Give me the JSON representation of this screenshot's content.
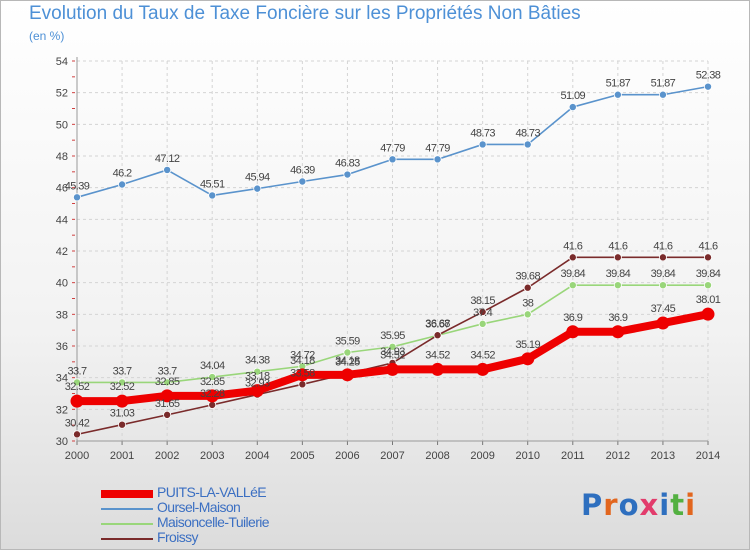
{
  "header": {
    "title": "Evolution du Taux de Taxe Foncière sur les Propriétés Non Bâties",
    "unit_label": "(en %)"
  },
  "logo": {
    "text": "Proxiti",
    "letter_colors": [
      "#2e6fbf",
      "#e2661e",
      "#2e6fbf",
      "#e23c6c",
      "#2e6fbf",
      "#53b041",
      "#e2661e"
    ]
  },
  "chart_data": {
    "type": "line",
    "x": [
      2000,
      2001,
      2002,
      2003,
      2004,
      2005,
      2006,
      2007,
      2008,
      2009,
      2010,
      2011,
      2012,
      2013,
      2014
    ],
    "ylim": [
      30,
      54
    ],
    "yticks": [
      30,
      32,
      34,
      36,
      38,
      40,
      42,
      44,
      46,
      48,
      50,
      52,
      54
    ],
    "grid": true,
    "series": [
      {
        "name": "Oursel-Maison",
        "color": "#5a93cc",
        "values": [
          45.39,
          46.2,
          47.12,
          45.51,
          45.94,
          46.39,
          46.83,
          47.79,
          47.79,
          48.73,
          48.73,
          51.09,
          51.87,
          51.87,
          52.38
        ],
        "labels": [
          "45.39",
          "46.2",
          "47.12",
          "45.51",
          "45.94",
          "46.39",
          "46.83",
          "47.79",
          "47.79",
          "48.73",
          "48.73",
          "51.09",
          "51.87",
          "51.87",
          "52.38"
        ]
      },
      {
        "name": "Maisoncelle-Tuilerie",
        "color": "#99d67a",
        "values": [
          33.7,
          33.7,
          33.7,
          34.04,
          34.38,
          34.72,
          35.59,
          35.95,
          36.67,
          37.4,
          38,
          39.84,
          39.84,
          39.84,
          39.84
        ],
        "labels": [
          "33.7",
          "33.7",
          "33.7",
          "34.04",
          "34.38",
          "34.72",
          "35.59",
          "35.95",
          "36.67",
          "37.4",
          "38",
          "39.84",
          "39.84",
          "39.84",
          "39.84"
        ]
      },
      {
        "name": "Froissy",
        "color": "#7a2b2b",
        "values": [
          30.42,
          31.03,
          31.65,
          32.28,
          32.93,
          33.58,
          34.25,
          34.93,
          36.68,
          38.15,
          39.68,
          41.6,
          41.6,
          41.6,
          41.6
        ],
        "labels": [
          "30.42",
          "31.03",
          "31.65",
          "32.28",
          "32.93",
          "33.58",
          "34.25",
          "34.93",
          "36.68",
          "38.15",
          "39.68",
          "41.6",
          "41.6",
          "41.6",
          "41.6"
        ]
      },
      {
        "name": "PUITS-LA-VALLéE",
        "color": "#ee0000",
        "values": [
          32.52,
          32.52,
          32.85,
          32.85,
          33.18,
          34.18,
          34.18,
          34.52,
          34.52,
          34.52,
          35.19,
          36.9,
          36.9,
          37.45,
          38.01
        ],
        "labels": [
          "32.52",
          "32.52",
          "32.85",
          "32.85",
          "33.18",
          "34.18",
          "34.18",
          "34.52",
          "34.52",
          "34.52",
          "35.19",
          "36.9",
          "36.9",
          "37.45",
          "38.01"
        ]
      }
    ],
    "legend": [
      "PUITS-LA-VALLéE",
      "Oursel-Maison",
      "Maisoncelle-Tuilerie",
      "Froissy"
    ],
    "legend_position": "bottom-left"
  }
}
